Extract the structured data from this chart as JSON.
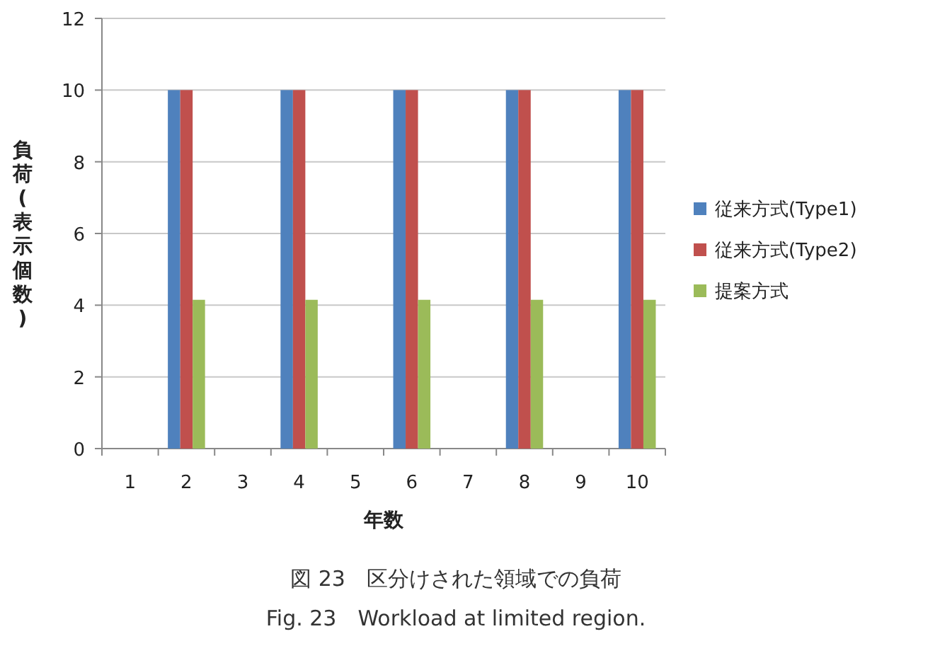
{
  "chart_data": {
    "type": "bar",
    "xlabel": "年数",
    "ylabel": "負荷(表示個数)",
    "categories": [
      "1",
      "2",
      "3",
      "4",
      "5",
      "6",
      "7",
      "8",
      "9",
      "10"
    ],
    "series": [
      {
        "name": "従来方式(Type1)",
        "color": "#4f81bd",
        "values": [
          null,
          10,
          null,
          10,
          null,
          10,
          null,
          10,
          null,
          10
        ]
      },
      {
        "name": "従来方式(Type2)",
        "color": "#c0504d",
        "values": [
          null,
          10,
          null,
          10,
          null,
          10,
          null,
          10,
          null,
          10
        ]
      },
      {
        "name": "提案方式",
        "color": "#9bbb59",
        "values": [
          null,
          4.15,
          null,
          4.15,
          null,
          4.15,
          null,
          4.15,
          null,
          4.15
        ]
      }
    ],
    "ylim": [
      0,
      12
    ],
    "yticks": [
      0,
      2,
      4,
      6,
      8,
      10,
      12
    ],
    "grid": "y",
    "legend": "right",
    "annotations": [
      "図 23　区分けされた領域での負荷",
      "Fig. 23　Workload at limited region."
    ]
  }
}
